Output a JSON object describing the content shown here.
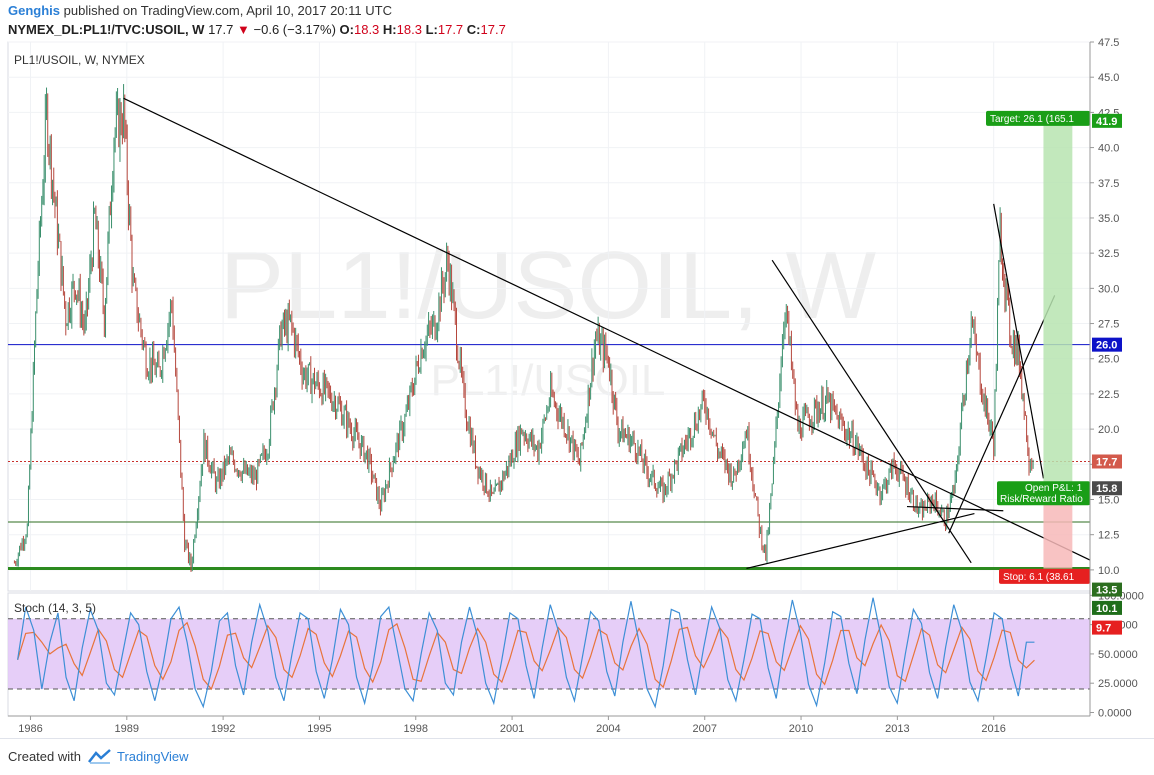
{
  "header": {
    "author": "Genghis",
    "published_text": "published on TradingView.com, April 10, 2017 20:11 UTC",
    "symbol": "NYMEX_DL:PL1!/TVC:USOIL, W",
    "last": "17.7",
    "change": "−0.6 (−3.17%)",
    "open_label": "O:",
    "open_value": "18.3",
    "high_label": "H:",
    "high_value": "18.3",
    "low_label": "L:",
    "low_value": "17.7",
    "close_label": "C:",
    "close_value": "17.7",
    "down_color": "#d0021b"
  },
  "footer": {
    "created_with": "Created with",
    "brand": "TradingView"
  },
  "chart_data": {
    "type": "line",
    "main_pane": {
      "legend": "PL1!/USOIL, W, NYMEX",
      "watermark": "PL1!/USOIL, W",
      "watermark_small": "PL1!/USOIL",
      "ylim": [
        8.5,
        47.5
      ],
      "y_ticks": [
        "10.0",
        "12.5",
        "15.0",
        "17.5",
        "20.0",
        "22.5",
        "25.0",
        "27.5",
        "30.0",
        "32.5",
        "35.0",
        "37.5",
        "40.0",
        "42.5",
        "45.0",
        "47.5"
      ],
      "xlim": [
        1985.3,
        2019.0
      ],
      "x_ticks": [
        "1986",
        "1989",
        "1992",
        "1995",
        "1998",
        "2001",
        "2004",
        "2007",
        "2010",
        "2013",
        "2016"
      ],
      "series_color_up": "#3a8f6c",
      "series_color_down": "#b5473d",
      "price_series": {
        "x": [
          1985.5,
          1985.9,
          1986.2,
          1986.5,
          1986.8,
          1987.1,
          1987.4,
          1987.7,
          1988.0,
          1988.3,
          1988.6,
          1988.9,
          1989.2,
          1989.6,
          1990.0,
          1990.4,
          1990.8,
          1991.0,
          1991.4,
          1991.8,
          1992.2,
          1992.6,
          1993.0,
          1993.4,
          1993.8,
          1994.1,
          1994.5,
          1995.0,
          1995.5,
          1996.0,
          1996.5,
          1996.9,
          1997.3,
          1997.7,
          1998.2,
          1998.6,
          1999.0,
          1999.5,
          1999.9,
          2000.4,
          2000.9,
          2001.3,
          2001.8,
          2002.2,
          2002.7,
          2003.1,
          2003.6,
          2004.0,
          2004.3,
          2004.8,
          2005.2,
          2005.7,
          2006.1,
          2006.6,
          2007.0,
          2007.4,
          2007.9,
          2008.3,
          2008.7,
          2008.9,
          2009.1,
          2009.5,
          2009.9,
          2010.3,
          2010.8,
          2011.2,
          2011.7,
          2012.1,
          2012.5,
          2012.9,
          2013.3,
          2013.7,
          2014.1,
          2014.5,
          2014.8,
          2015.0,
          2015.3,
          2015.7,
          2016.0,
          2016.2,
          2016.5,
          2016.8,
          2017.1,
          2017.27
        ],
        "y": [
          10.5,
          13.0,
          30.0,
          42.5,
          35.0,
          28.0,
          30.5,
          27.0,
          35.0,
          28.0,
          41.0,
          42.5,
          30.0,
          25.0,
          24.0,
          29.0,
          12.0,
          10.2,
          19.0,
          16.0,
          18.0,
          17.0,
          16.5,
          19.0,
          27.0,
          27.5,
          24.0,
          23.0,
          22.0,
          20.0,
          18.0,
          14.5,
          18.0,
          21.0,
          26.0,
          27.5,
          32.0,
          22.0,
          17.5,
          15.0,
          17.5,
          20.0,
          18.5,
          22.5,
          20.0,
          17.5,
          26.5,
          25.0,
          20.0,
          19.0,
          17.0,
          15.5,
          17.5,
          20.0,
          22.0,
          18.5,
          16.5,
          20.0,
          13.0,
          11.0,
          16.0,
          29.0,
          20.0,
          21.0,
          22.0,
          20.5,
          19.0,
          17.0,
          15.5,
          17.5,
          16.0,
          14.0,
          15.0,
          13.5,
          16.0,
          21.0,
          27.5,
          22.0,
          19.0,
          34.0,
          27.0,
          25.0,
          18.0,
          17.7
        ]
      },
      "horizontal_lines": [
        {
          "label": "26.0",
          "y": 26.0,
          "color": "#0d12c8"
        },
        {
          "label": "",
          "y": 17.7,
          "color": "#c8302c",
          "style": "dotted"
        },
        {
          "label": "",
          "y": 13.4,
          "color": "#2c6e1f"
        },
        {
          "label": "",
          "y": 10.1,
          "color": "#2c8a1f",
          "style": "thick"
        }
      ],
      "trend_lines": [
        {
          "x1": 1988.9,
          "y1": 43.5,
          "x2": 2019.0,
          "y2": 10.7
        },
        {
          "x1": 2009.1,
          "y1": 32.0,
          "x2": 2015.3,
          "y2": 10.5
        },
        {
          "x1": 2008.3,
          "y1": 10.1,
          "x2": 2015.4,
          "y2": 14.0
        },
        {
          "x1": 2013.3,
          "y1": 14.5,
          "x2": 2016.3,
          "y2": 14.2
        },
        {
          "x1": 2014.6,
          "y1": 12.6,
          "x2": 2017.9,
          "y2": 29.5
        },
        {
          "x1": 2016.0,
          "y1": 36.0,
          "x2": 2017.55,
          "y2": 16.5
        }
      ],
      "position_tool": {
        "x_start": 2017.55,
        "x_end": 2018.45,
        "entry": 15.8,
        "target": 41.9,
        "stop": 9.7,
        "target_label": "Target: 26.1 (165.1",
        "stop_label": "Stop: 6.1 (38.61",
        "pl_label_1": "Open P&L: 1",
        "pl_label_2": "Risk/Reward Ratio",
        "profit_color": "#b7e4b0",
        "loss_color": "#f7b9b9"
      },
      "price_tags": [
        {
          "label": "41.9",
          "y": 41.9,
          "bg": "#1a9e17"
        },
        {
          "label": "26.0",
          "y": 26.0,
          "bg": "#0d12c8"
        },
        {
          "label": "17.7",
          "y": 17.7,
          "bg": "#d35a4c"
        },
        {
          "label": "15.8",
          "y": 15.8,
          "bg": "#4a4a4a"
        },
        {
          "label": "13.5",
          "y": 8.6,
          "bg": "#2c6e1f"
        },
        {
          "label": "10.1",
          "y": 7.3,
          "bg": "#1f6e1a"
        },
        {
          "label": "9.7",
          "y": 5.9,
          "bg": "#e62020"
        }
      ]
    },
    "stoch_pane": {
      "legend": "Stoch (14, 3, 5)",
      "ylim": [
        -3,
        102
      ],
      "y_ticks": [
        "0.0000",
        "25.0000",
        "50.0000",
        "75.0000",
        "100.0000"
      ],
      "upper_band": 80,
      "lower_band": 20,
      "band_color": "#e2c6f7",
      "k_color": "#3d8fd6",
      "d_color": "#e8743b",
      "k_values": [
        45,
        90,
        70,
        20,
        60,
        85,
        30,
        10,
        55,
        88,
        70,
        25,
        15,
        50,
        85,
        75,
        35,
        10,
        40,
        80,
        90,
        60,
        20,
        5,
        35,
        78,
        85,
        40,
        15,
        60,
        92,
        70,
        30,
        10,
        50,
        85,
        80,
        35,
        12,
        45,
        88,
        75,
        30,
        8,
        40,
        82,
        90,
        55,
        20,
        10,
        50,
        85,
        70,
        25,
        15,
        60,
        90,
        65,
        25,
        8,
        45,
        85,
        80,
        40,
        12,
        55,
        92,
        70,
        30,
        10,
        48,
        86,
        78,
        35,
        14,
        60,
        95,
        60,
        20,
        5,
        40,
        88,
        85,
        45,
        15,
        55,
        90,
        72,
        28,
        10,
        45,
        84,
        80,
        38,
        12,
        58,
        96,
        68,
        24,
        6,
        42,
        86,
        82,
        42,
        16,
        62,
        98,
        64,
        22,
        8,
        50,
        88,
        76,
        34,
        12,
        56,
        92,
        70,
        26,
        10,
        46,
        85,
        80,
        40,
        14,
        60,
        60
      ]
    }
  }
}
